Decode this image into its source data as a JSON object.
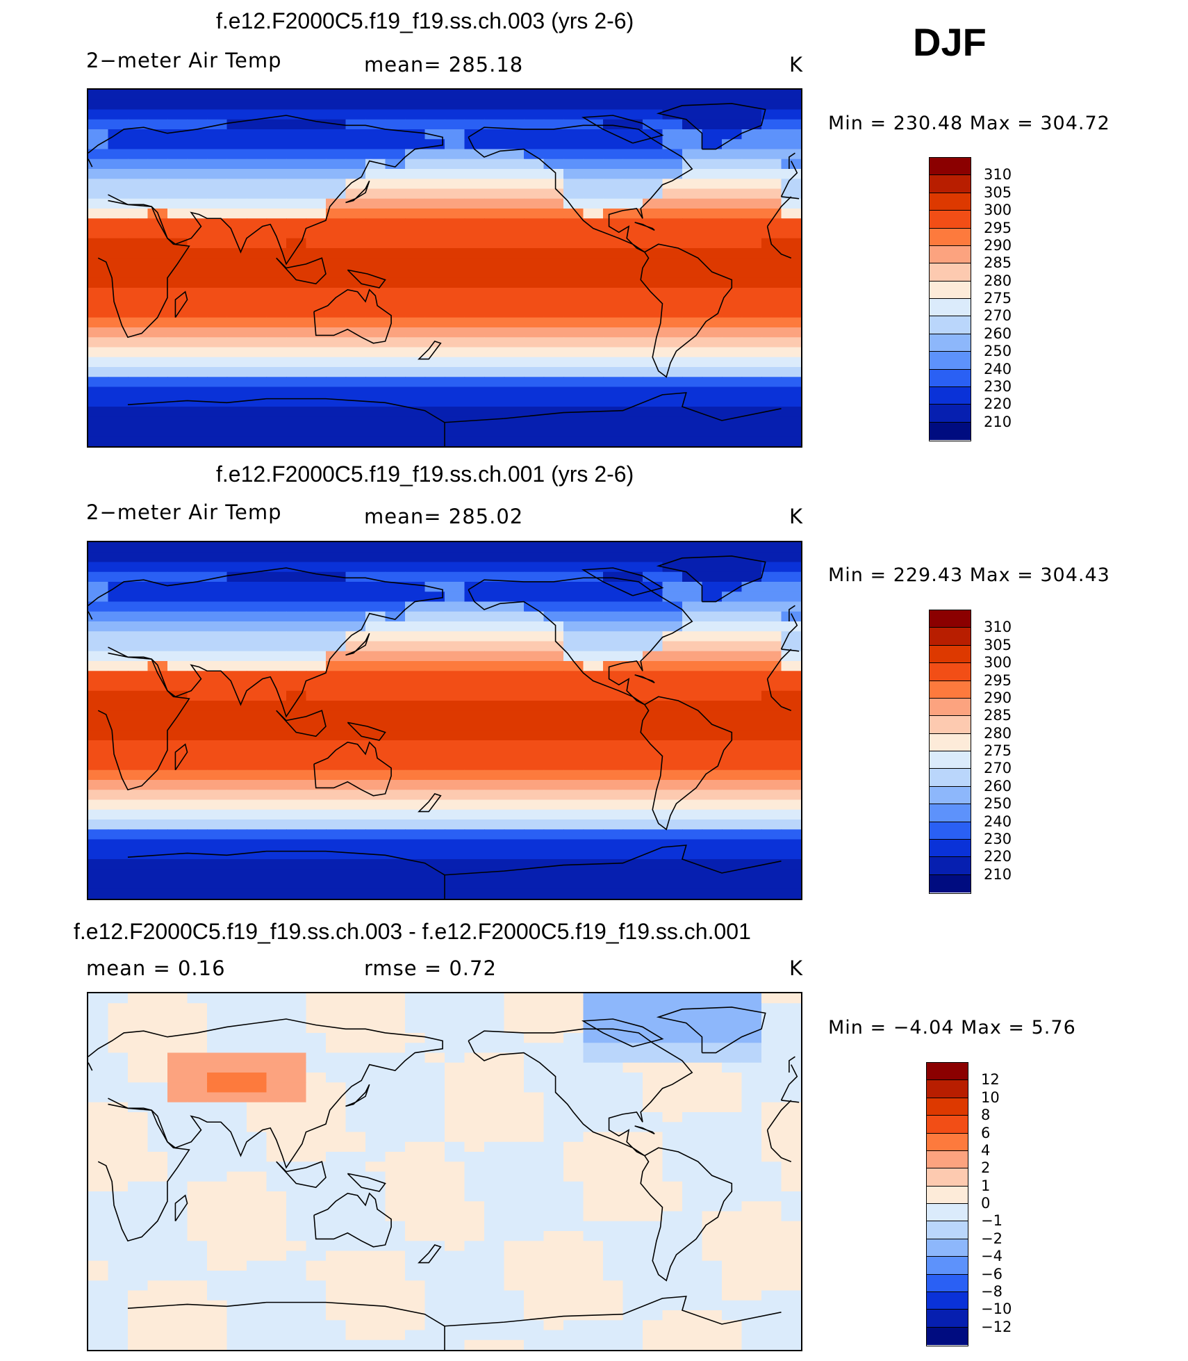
{
  "season": "DJF",
  "panels": [
    {
      "title": "f.e12.F2000C5.f19_f19.ss.ch.003 (yrs 2-6)",
      "left_label": "2−meter Air Temp",
      "center_label": "mean=  285.18",
      "units": "K",
      "minmax": "Min  =  230.48  Max  =  304.72",
      "colorbar_ticks": [
        "310",
        "305",
        "300",
        "295",
        "290",
        "285",
        "280",
        "275",
        "270",
        "260",
        "250",
        "240",
        "230",
        "220",
        "210"
      ],
      "map_type": "absolute"
    },
    {
      "title": "f.e12.F2000C5.f19_f19.ss.ch.001 (yrs 2-6)",
      "left_label": "2−meter Air Temp",
      "center_label": "mean=  285.02",
      "units": "K",
      "minmax": "Min  =  229.43  Max  =  304.43",
      "colorbar_ticks": [
        "310",
        "305",
        "300",
        "295",
        "290",
        "285",
        "280",
        "275",
        "270",
        "260",
        "250",
        "240",
        "230",
        "220",
        "210"
      ],
      "map_type": "absolute"
    },
    {
      "title": "f.e12.F2000C5.f19_f19.ss.ch.003 - f.e12.F2000C5.f19_f19.ss.ch.001",
      "left_label": "mean  =     0.16",
      "center_label": "rmse  =     0.72",
      "units": "K",
      "minmax": "Min  =     −4.04  Max  =       5.76",
      "colorbar_ticks": [
        "12",
        "10",
        "8",
        "6",
        "4",
        "2",
        "1",
        "0",
        "−1",
        "−2",
        "−4",
        "−6",
        "−8",
        "−10",
        "−12"
      ],
      "map_type": "difference"
    }
  ],
  "colorbar_colors": [
    "#8b0000",
    "#b81e00",
    "#dd3900",
    "#f24e16",
    "#fd7a3d",
    "#fca37f",
    "#fdcab0",
    "#fdebd9",
    "#dbebfb",
    "#bad6fb",
    "#8db7fb",
    "#5d92fb",
    "#2a60f4",
    "#0a32d8",
    "#061fb0",
    "#000c80"
  ]
}
